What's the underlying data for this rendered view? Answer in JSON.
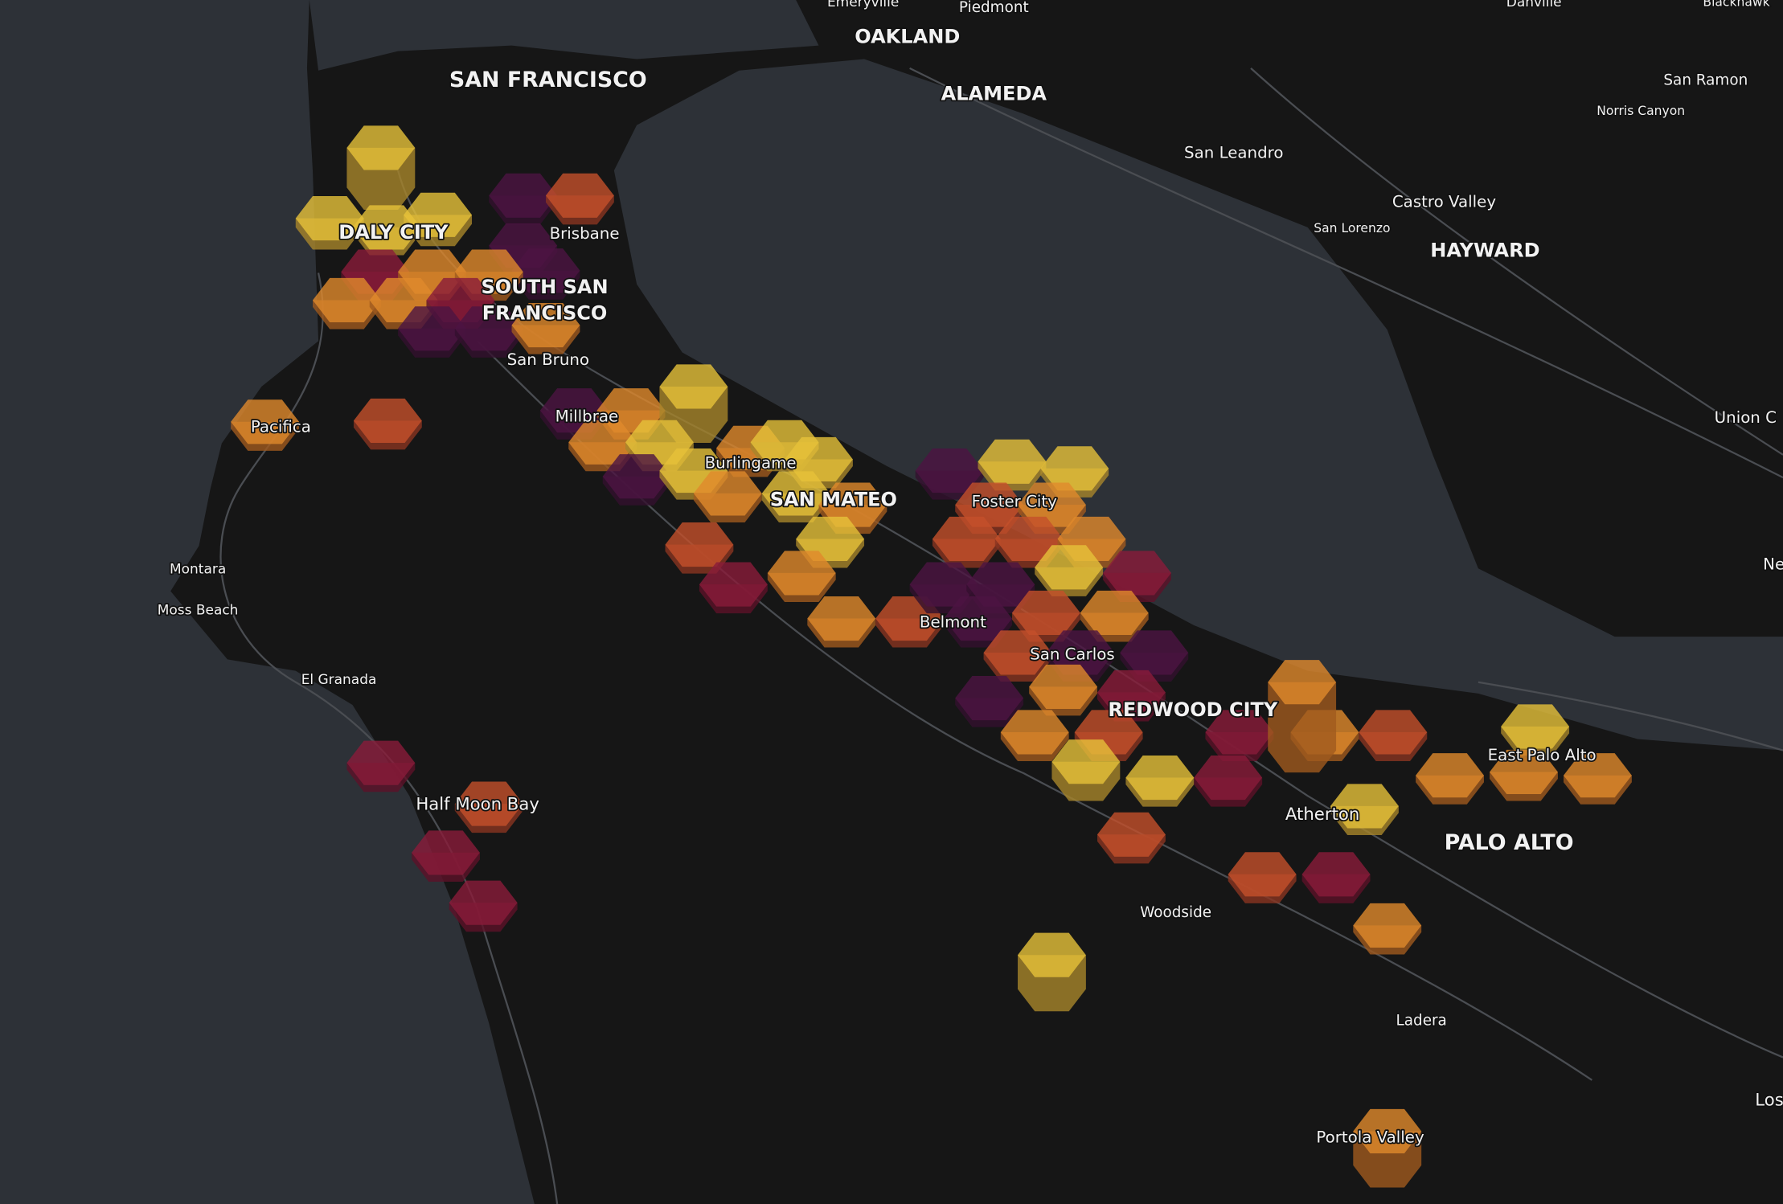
{
  "places": [
    "Emeryville",
    "Piedmont",
    "OAKLAND",
    "Danville",
    "Blackhawk",
    "SAN FRANCISCO",
    "ALAMEDA",
    "San Ramon",
    "Norris Canyon",
    "San Leandro",
    "Castro Valley",
    "San Lorenzo",
    "HAYWARD",
    "DALY CITY",
    "Brisbane",
    "SOUTH SAN",
    "FRANCISCO",
    "San Bruno",
    "Pacifica",
    "Millbrae",
    "Burlingame",
    "SAN MATEO",
    "Foster City",
    "Union C",
    "Ne",
    "Montara",
    "Moss Beach",
    "El Granada",
    "Belmont",
    "San Carlos",
    "REDWOOD CITY",
    "East Palo Alto",
    "Atherton",
    "PALO ALTO",
    "Half Moon Bay",
    "Woodside",
    "Ladera",
    "Los",
    "Portola Valley"
  ]
}
